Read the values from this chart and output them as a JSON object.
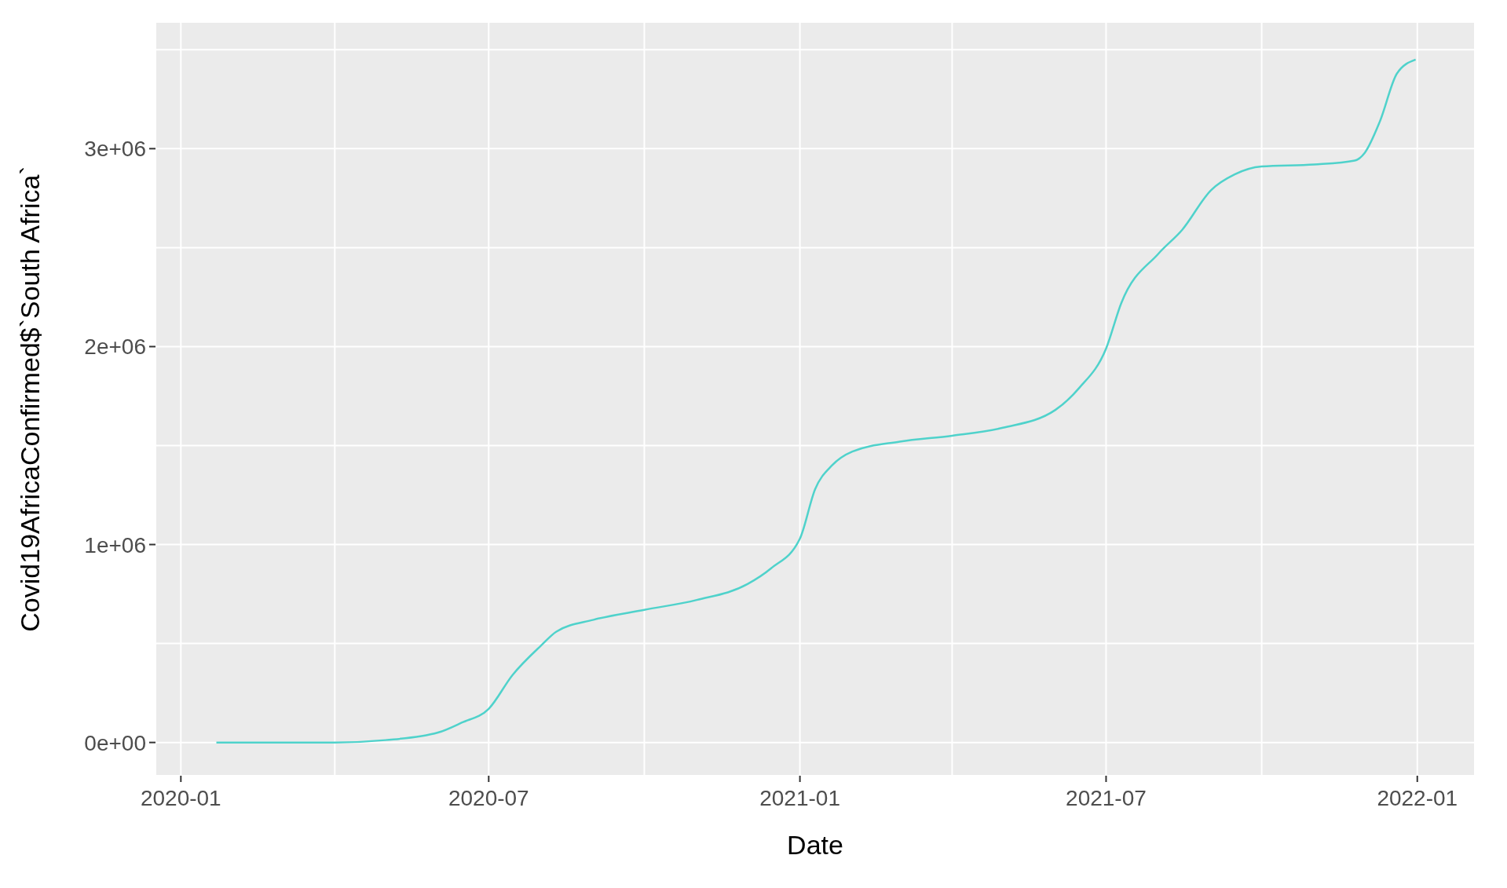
{
  "chart_data": {
    "type": "line",
    "xlabel": "Date",
    "ylabel": "Covid19AfricaConfirmed$`South Africa`",
    "x": [
      "2020-01-22",
      "2020-04-01",
      "2020-05-01",
      "2020-06-01",
      "2020-06-15",
      "2020-07-01",
      "2020-07-15",
      "2020-08-01",
      "2020-08-10",
      "2020-09-01",
      "2020-10-01",
      "2020-11-01",
      "2020-12-01",
      "2020-12-15",
      "2021-01-01",
      "2021-01-10",
      "2021-01-20",
      "2021-02-01",
      "2021-03-01",
      "2021-04-01",
      "2021-05-01",
      "2021-06-01",
      "2021-06-15",
      "2021-07-01",
      "2021-07-10",
      "2021-08-01",
      "2021-08-15",
      "2021-09-01",
      "2021-09-15",
      "2021-10-01",
      "2021-11-01",
      "2021-11-25",
      "2021-12-01",
      "2021-12-10",
      "2021-12-20",
      "2021-12-31"
    ],
    "series": [
      {
        "color": "#4fd2cb",
        "values": [
          0,
          0,
          12000,
          50000,
          100000,
          170000,
          340000,
          490000,
          560000,
          620000,
          670000,
          720000,
          800000,
          880000,
          1030000,
          1280000,
          1400000,
          1470000,
          1520000,
          1550000,
          1590000,
          1680000,
          1790000,
          1990000,
          2220000,
          2470000,
          2590000,
          2790000,
          2870000,
          2910000,
          2920000,
          2940000,
          2980000,
          3140000,
          3380000,
          3450000
        ]
      }
    ],
    "xlim": [
      "2019-12-17",
      "2022-02-04"
    ],
    "xticks": [
      "2020-01",
      {
        "value": "2020-04",
        "label": null
      },
      "2020-07",
      {
        "value": "2020-10",
        "label": null
      },
      "2021-01",
      {
        "value": "2021-04",
        "label": null
      },
      "2021-07",
      {
        "value": "2021-10",
        "label": null
      },
      "2022-01"
    ],
    "ylim": [
      -168000,
      3640000
    ],
    "yticks": [
      {
        "value": 0,
        "label": "0e+00"
      },
      {
        "value": 500000,
        "label": null
      },
      {
        "value": 1000000,
        "label": "1e+06"
      },
      {
        "value": 1500000,
        "label": null
      },
      {
        "value": 2000000,
        "label": "2e+06"
      },
      {
        "value": 2500000,
        "label": null
      },
      {
        "value": 3000000,
        "label": "3e+06"
      },
      {
        "value": 3500000,
        "label": null
      }
    ],
    "grid": true,
    "legend": false,
    "marker": "none",
    "line_style": "solid"
  }
}
